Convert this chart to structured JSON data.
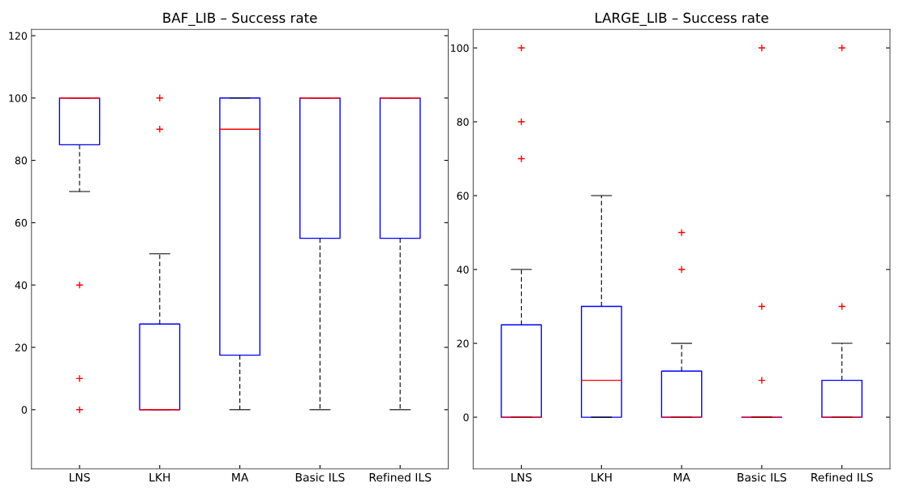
{
  "chart_data": [
    {
      "type": "box",
      "title": "BAF_LIB – Success rate",
      "categories": [
        "LNS",
        "LKH",
        "MA",
        "Basic ILS",
        "Refined ILS"
      ],
      "color": "#0000ff",
      "ylim": [
        -19,
        122
      ],
      "yticks": [
        0,
        20,
        40,
        60,
        80,
        100,
        120
      ],
      "grid": false,
      "boxes": [
        {
          "low": 70,
          "q1": 85,
          "median": 100,
          "q3": 100,
          "high": 100,
          "outliers": [
            40,
            10,
            0
          ]
        },
        {
          "low": 0,
          "q1": 0,
          "median": 0,
          "q3": 27.5,
          "high": 50,
          "outliers": [
            90,
            100
          ]
        },
        {
          "low": 0,
          "q1": 17.5,
          "median": 90,
          "q3": 100,
          "high": 100
        },
        {
          "low": 0,
          "q1": 55,
          "median": 100,
          "q3": 100,
          "high": 100
        },
        {
          "low": 0,
          "q1": 55,
          "median": 100,
          "q3": 100,
          "high": 100
        }
      ]
    },
    {
      "type": "box",
      "title": "LARGE_LIB – Success rate",
      "categories": [
        "LNS",
        "LKH",
        "MA",
        "Basic ILS",
        "Refined ILS"
      ],
      "color": "#0000ff",
      "ylim": [
        -14,
        105
      ],
      "yticks": [
        0,
        20,
        40,
        60,
        80,
        100
      ],
      "grid": false,
      "boxes": [
        {
          "low": 0,
          "q1": 0,
          "median": 0,
          "q3": 25,
          "high": 40,
          "outliers": [
            70,
            80,
            100
          ]
        },
        {
          "low": 0,
          "q1": 0,
          "median": 10,
          "q3": 30,
          "high": 60
        },
        {
          "low": 0,
          "q1": 0,
          "median": 0,
          "q3": 12.5,
          "high": 20,
          "outliers": [
            40,
            50
          ]
        },
        {
          "low": 0,
          "q1": 0,
          "median": 0,
          "q3": 0,
          "high": 0,
          "outliers": [
            10,
            30,
            100
          ]
        },
        {
          "low": 0,
          "q1": 0,
          "median": 0,
          "q3": 10,
          "high": 20,
          "outliers": [
            30,
            100
          ]
        }
      ]
    }
  ]
}
